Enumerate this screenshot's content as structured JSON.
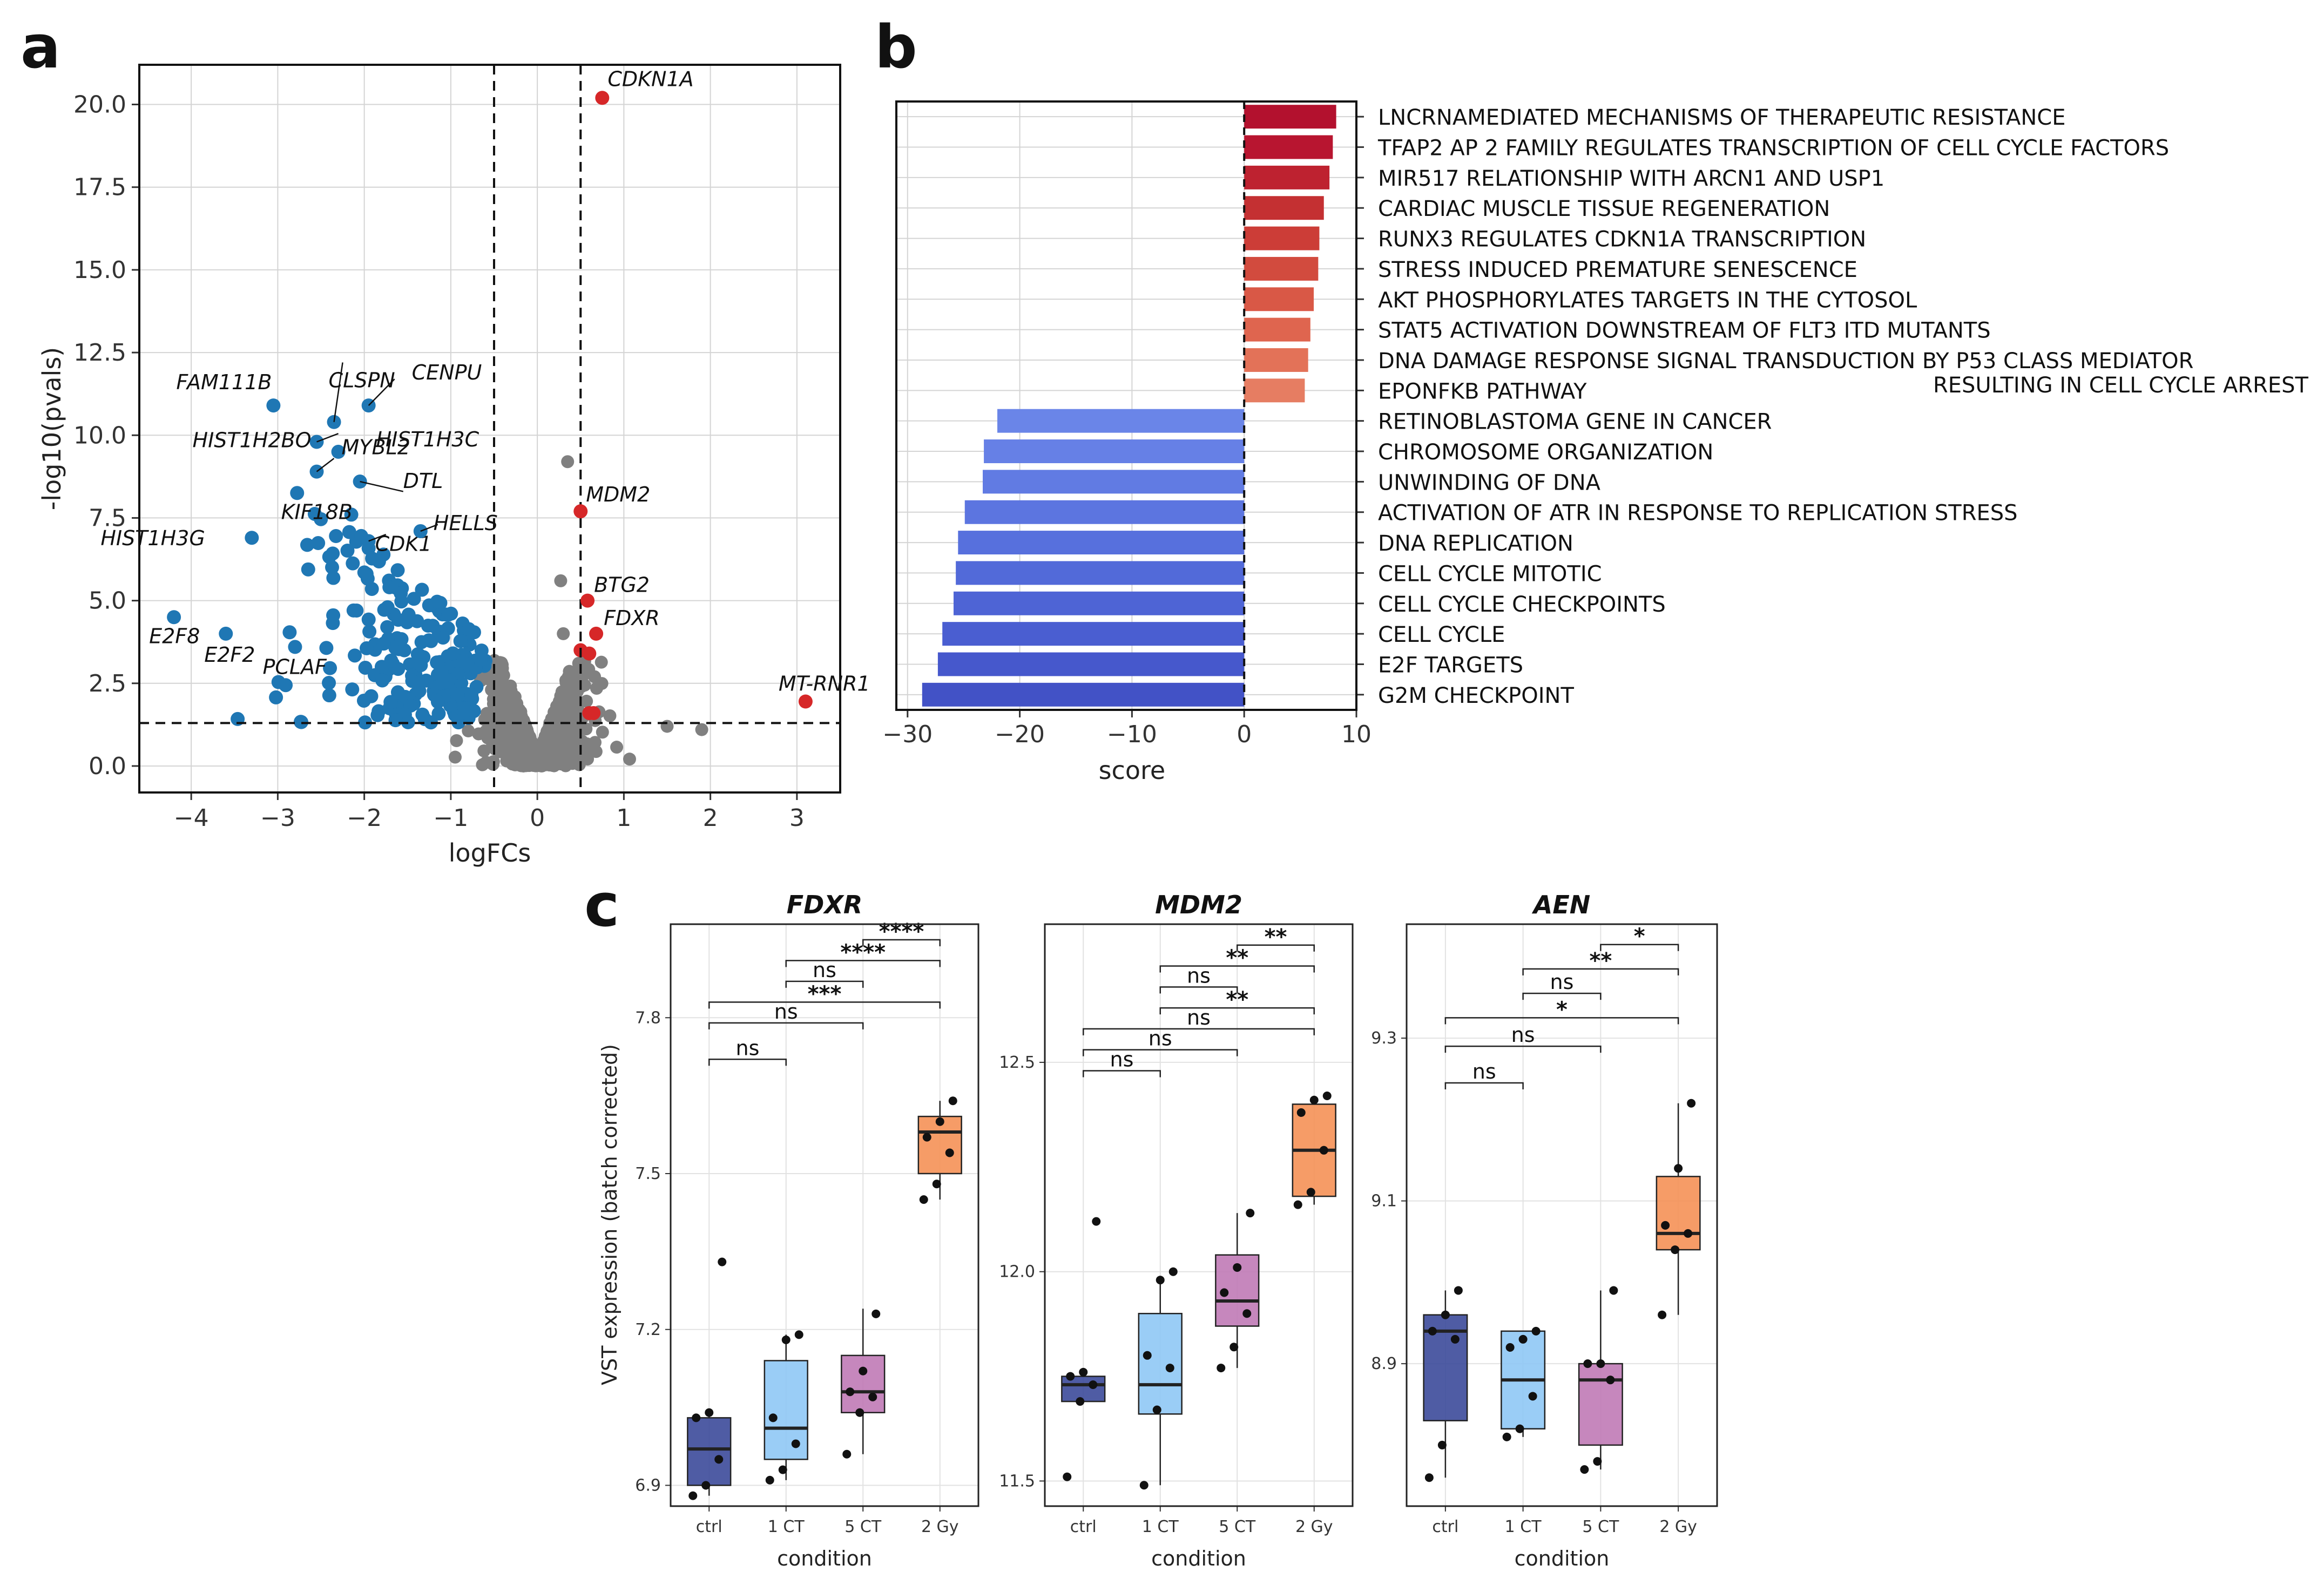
{
  "panel_letters": [
    "a",
    "b",
    "c"
  ],
  "colors": {
    "down": "#1f77b4",
    "up": "#d62728",
    "ns": "#808080",
    "conditions": [
      "#3c4a9a",
      "#8fc8f5",
      "#c07ab6",
      "#f59157"
    ]
  },
  "chart_data": [
    {
      "panel": "a",
      "type": "scatter",
      "title": "",
      "xlabel": "logFCs",
      "ylabel": "-log10(pvals)",
      "xlim": [
        -4.6,
        3.5
      ],
      "ylim": [
        -0.8,
        21.2
      ],
      "xticks": [
        -4,
        -3,
        -2,
        -1,
        0,
        1,
        2,
        3
      ],
      "xtick_labels": [
        "−4",
        "−3",
        "−2",
        "−1",
        "0",
        "1",
        "2",
        "3"
      ],
      "yticks": [
        0,
        2.5,
        5,
        7.5,
        10,
        12.5,
        15,
        17.5,
        20
      ],
      "ytick_labels": [
        "0.0",
        "2.5",
        "5.0",
        "7.5",
        "10.0",
        "12.5",
        "15.0",
        "17.5",
        "20.0"
      ],
      "grid": true,
      "thresholds": {
        "logfc": [
          -0.5,
          0.5
        ],
        "neg_log10_p": 1.3
      },
      "labeled_points": [
        {
          "gene": "CDKN1A",
          "x": 0.75,
          "y": 20.2,
          "group": "up"
        },
        {
          "gene": "MDM2",
          "x": 0.5,
          "y": 7.7,
          "group": "up"
        },
        {
          "gene": "BTG2",
          "x": 0.58,
          "y": 5.0,
          "group": "up"
        },
        {
          "gene": "FDXR",
          "x": 0.68,
          "y": 4.0,
          "group": "up"
        },
        {
          "gene": "MT-RNR1",
          "x": 3.1,
          "y": 1.95,
          "group": "up"
        },
        {
          "gene": "FAM111B",
          "x": -3.05,
          "y": 10.9,
          "group": "down"
        },
        {
          "gene": "CLSPN",
          "x": -2.35,
          "y": 10.4,
          "group": "down"
        },
        {
          "gene": "CENPU",
          "x": -1.95,
          "y": 10.9,
          "group": "down"
        },
        {
          "gene": "HIST1H2BO",
          "x": -2.55,
          "y": 9.8,
          "group": "down"
        },
        {
          "gene": "HIST1H3C",
          "x": -2.3,
          "y": 9.5,
          "group": "down"
        },
        {
          "gene": "MYBL2",
          "x": -2.55,
          "y": 8.9,
          "group": "down"
        },
        {
          "gene": "DTL",
          "x": -2.05,
          "y": 8.6,
          "group": "down"
        },
        {
          "gene": "KIF18B",
          "x": -2.15,
          "y": 7.6,
          "group": "down"
        },
        {
          "gene": "CDK1",
          "x": -1.95,
          "y": 6.8,
          "group": "down"
        },
        {
          "gene": "HELLS",
          "x": -1.35,
          "y": 7.1,
          "group": "down"
        },
        {
          "gene": "HIST1H3G",
          "x": -3.3,
          "y": 6.9,
          "group": "down"
        },
        {
          "gene": "E2F8",
          "x": -4.2,
          "y": 4.5,
          "group": "down"
        },
        {
          "gene": "E2F2",
          "x": -3.6,
          "y": 4.0,
          "group": "down"
        },
        {
          "gene": "PCLAF",
          "x": -2.8,
          "y": 3.6,
          "group": "down"
        }
      ],
      "ns_outliers": [
        {
          "x": 0.35,
          "y": 9.2
        },
        {
          "x": 0.27,
          "y": 5.6
        },
        {
          "x": 0.3,
          "y": 4.0
        },
        {
          "x": 1.5,
          "y": 1.2
        },
        {
          "x": 1.9,
          "y": 1.1
        }
      ],
      "extra_up": [
        {
          "x": 0.5,
          "y": 3.5
        },
        {
          "x": 0.6,
          "y": 3.4
        },
        {
          "x": 0.6,
          "y": 1.6
        },
        {
          "x": 0.65,
          "y": 1.6
        }
      ]
    },
    {
      "panel": "b",
      "type": "bar",
      "orientation": "horizontal",
      "xlabel": "score",
      "xlim": [
        -31,
        10
      ],
      "xticks": [
        -30,
        -20,
        -10,
        0,
        10
      ],
      "xtick_labels": [
        "−30",
        "−20",
        "−10",
        "0",
        "10"
      ],
      "grid": true,
      "bars": [
        {
          "label": "LNCRNAMEDIATED MECHANISMS OF THERAPEUTIC RESISTANCE",
          "label2": "",
          "value": 8.2
        },
        {
          "label": "TFAP2 AP 2 FAMILY REGULATES TRANSCRIPTION OF CELL CYCLE FACTORS",
          "label2": "",
          "value": 7.9
        },
        {
          "label": "MIR517 RELATIONSHIP WITH ARCN1 AND USP1",
          "label2": "",
          "value": 7.6
        },
        {
          "label": "CARDIAC MUSCLE TISSUE REGENERATION",
          "label2": "",
          "value": 7.1
        },
        {
          "label": "RUNX3 REGULATES CDKN1A TRANSCRIPTION",
          "label2": "",
          "value": 6.7
        },
        {
          "label": "STRESS INDUCED PREMATURE SENESCENCE",
          "label2": "",
          "value": 6.6
        },
        {
          "label": "AKT PHOSPHORYLATES TARGETS IN THE CYTOSOL",
          "label2": "",
          "value": 6.2
        },
        {
          "label": "STAT5 ACTIVATION DOWNSTREAM OF FLT3 ITD MUTANTS",
          "label2": "",
          "value": 5.9
        },
        {
          "label": "DNA DAMAGE RESPONSE SIGNAL TRANSDUCTION BY P53 CLASS MEDIATOR",
          "label2": "RESULTING IN CELL CYCLE ARREST",
          "value": 5.7
        },
        {
          "label": "EPONFKB PATHWAY",
          "label2": "",
          "value": 5.4
        },
        {
          "label": "RETINOBLASTOMA GENE IN CANCER",
          "label2": "",
          "value": -22.0
        },
        {
          "label": "CHROMOSOME ORGANIZATION",
          "label2": "",
          "value": -23.2
        },
        {
          "label": "UNWINDING OF DNA",
          "label2": "",
          "value": -23.3
        },
        {
          "label": "ACTIVATION OF ATR IN RESPONSE TO REPLICATION STRESS",
          "label2": "",
          "value": -24.9
        },
        {
          "label": "DNA REPLICATION",
          "label2": "",
          "value": -25.5
        },
        {
          "label": "CELL CYCLE MITOTIC",
          "label2": "",
          "value": -25.7
        },
        {
          "label": "CELL CYCLE CHECKPOINTS",
          "label2": "",
          "value": -25.9
        },
        {
          "label": "CELL CYCLE",
          "label2": "",
          "value": -26.9
        },
        {
          "label": "E2F TARGETS",
          "label2": "",
          "value": -27.3
        },
        {
          "label": "G2M CHECKPOINT",
          "label2": "",
          "value": -28.7
        }
      ]
    },
    {
      "panel": "c",
      "type": "box",
      "ylabel": "VST expression (batch corrected)",
      "xlabel": "condition",
      "categories": [
        "ctrl",
        "1 CT",
        "5 CT",
        "2 Gy"
      ],
      "facets": [
        {
          "title": "FDXR",
          "ylim": [
            6.86,
            7.98
          ],
          "yticks": [
            6.9,
            7.2,
            7.5,
            7.8
          ],
          "ytick_labels": [
            "6.9",
            "7.2",
            "7.5",
            "7.8"
          ],
          "boxes": [
            {
              "q1": 6.9,
              "median": 6.97,
              "q3": 7.03,
              "wlo": 6.88,
              "whi": 7.04
            },
            {
              "q1": 6.95,
              "median": 7.01,
              "q3": 7.14,
              "wlo": 6.91,
              "whi": 7.19
            },
            {
              "q1": 7.04,
              "median": 7.08,
              "q3": 7.15,
              "wlo": 6.96,
              "whi": 7.24
            },
            {
              "q1": 7.5,
              "median": 7.58,
              "q3": 7.61,
              "wlo": 7.45,
              "whi": 7.64
            }
          ],
          "points": [
            [
              6.88,
              6.9,
              6.95,
              7.03,
              7.04,
              7.33
            ],
            [
              6.91,
              6.93,
              6.98,
              7.03,
              7.18,
              7.19
            ],
            [
              6.96,
              7.04,
              7.07,
              7.08,
              7.12,
              7.23
            ],
            [
              7.45,
              7.48,
              7.54,
              7.57,
              7.6,
              7.64
            ]
          ],
          "brackets": [
            {
              "from": 2,
              "to": 3,
              "label": "****",
              "y": 7.95
            },
            {
              "from": 1,
              "to": 3,
              "label": "****",
              "y": 7.91
            },
            {
              "from": 1,
              "to": 2,
              "label": "ns",
              "y": 7.87
            },
            {
              "from": 0,
              "to": 3,
              "label": "***",
              "y": 7.83
            },
            {
              "from": 0,
              "to": 2,
              "label": "ns",
              "y": 7.79
            },
            {
              "from": 0,
              "to": 1,
              "label": "ns",
              "y": 7.72
            }
          ]
        },
        {
          "title": "MDM2",
          "ylim": [
            11.44,
            12.83
          ],
          "yticks": [
            11.5,
            12.0,
            12.5
          ],
          "ytick_labels": [
            "11.5",
            "12.0",
            "12.5"
          ],
          "boxes": [
            {
              "q1": 11.69,
              "median": 11.73,
              "q3": 11.75,
              "wlo": 11.69,
              "whi": 11.76
            },
            {
              "q1": 11.66,
              "median": 11.73,
              "q3": 11.9,
              "wlo": 11.49,
              "whi": 11.99
            },
            {
              "q1": 11.87,
              "median": 11.93,
              "q3": 12.04,
              "wlo": 11.77,
              "whi": 12.14
            },
            {
              "q1": 12.18,
              "median": 12.29,
              "q3": 12.4,
              "wlo": 12.16,
              "whi": 12.42
            }
          ],
          "points": [
            [
              11.51,
              11.69,
              11.73,
              11.75,
              11.76,
              12.12
            ],
            [
              11.49,
              11.67,
              11.77,
              11.8,
              11.98,
              12.0
            ],
            [
              11.77,
              11.82,
              11.9,
              11.95,
              12.01,
              12.14
            ],
            [
              12.16,
              12.19,
              12.29,
              12.38,
              12.41,
              12.42
            ]
          ],
          "brackets": [
            {
              "from": 2,
              "to": 3,
              "label": "**",
              "y": 12.78
            },
            {
              "from": 1,
              "to": 3,
              "label": "**",
              "y": 12.73
            },
            {
              "from": 1,
              "to": 2,
              "label": "ns",
              "y": 12.68
            },
            {
              "from": 1,
              "to": 3,
              "label": "**",
              "y": 12.63
            },
            {
              "from": 0,
              "to": 3,
              "label": "ns",
              "y": 12.58
            },
            {
              "from": 0,
              "to": 2,
              "label": "ns",
              "y": 12.53
            },
            {
              "from": 0,
              "to": 1,
              "label": "ns",
              "y": 12.48
            }
          ]
        },
        {
          "title": "AEN",
          "ylim": [
            8.725,
            9.44
          ],
          "yticks": [
            8.9,
            9.1,
            9.3
          ],
          "ytick_labels": [
            "8.9",
            "9.1",
            "9.3"
          ],
          "boxes": [
            {
              "q1": 8.83,
              "median": 8.94,
              "q3": 8.96,
              "wlo": 8.76,
              "whi": 8.99
            },
            {
              "q1": 8.82,
              "median": 8.88,
              "q3": 8.94,
              "wlo": 8.81,
              "whi": 8.94
            },
            {
              "q1": 8.8,
              "median": 8.88,
              "q3": 8.9,
              "wlo": 8.77,
              "whi": 8.99
            },
            {
              "q1": 9.04,
              "median": 9.06,
              "q3": 9.13,
              "wlo": 8.96,
              "whi": 9.22
            }
          ],
          "points": [
            [
              8.76,
              8.8,
              8.93,
              8.94,
              8.96,
              8.99
            ],
            [
              8.81,
              8.82,
              8.86,
              8.92,
              8.93,
              8.94
            ],
            [
              8.77,
              8.78,
              8.88,
              8.9,
              8.9,
              8.99
            ],
            [
              8.96,
              9.04,
              9.06,
              9.07,
              9.14,
              9.22
            ]
          ],
          "brackets": [
            {
              "from": 2,
              "to": 3,
              "label": "*",
              "y": 9.415
            },
            {
              "from": 1,
              "to": 3,
              "label": "**",
              "y": 9.385
            },
            {
              "from": 1,
              "to": 2,
              "label": "ns",
              "y": 9.355
            },
            {
              "from": 0,
              "to": 3,
              "label": "*",
              "y": 9.325
            },
            {
              "from": 0,
              "to": 2,
              "label": "ns",
              "y": 9.29
            },
            {
              "from": 0,
              "to": 1,
              "label": "ns",
              "y": 9.245
            }
          ]
        }
      ]
    }
  ]
}
